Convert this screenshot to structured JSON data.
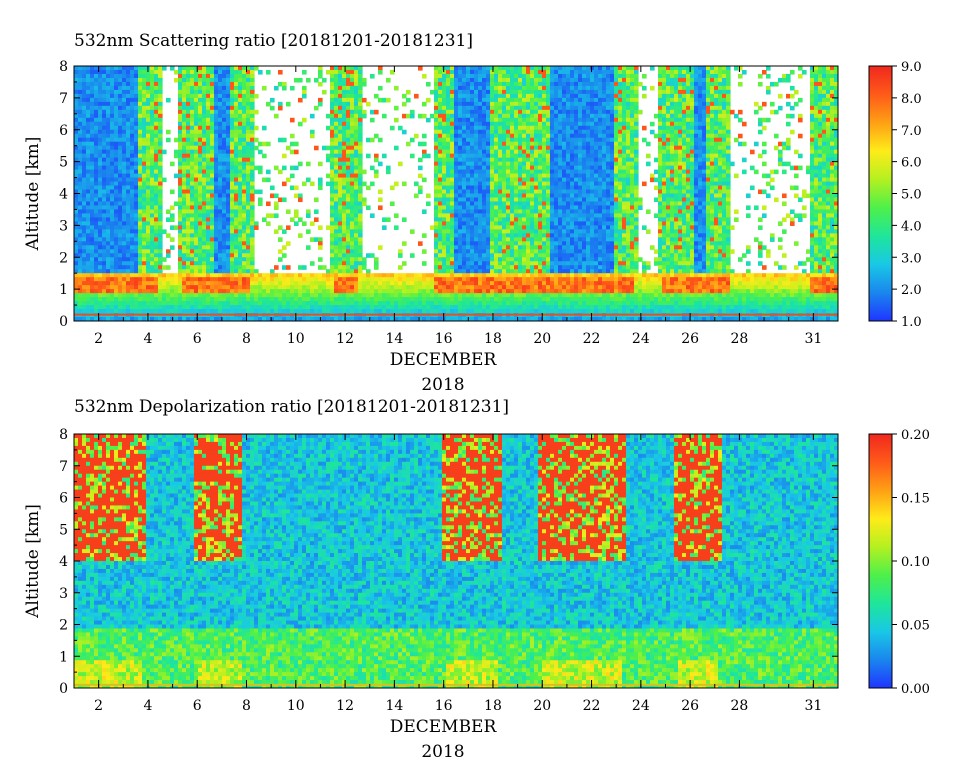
{
  "chart_data": [
    {
      "type": "heatmap",
      "title": "532nm Scattering ratio [20181201-20181231]",
      "xlabel": "DECEMBER",
      "xlabel2": "2018",
      "ylabel": "Altitude [km]",
      "xlim": [
        1,
        32
      ],
      "ylim": [
        0,
        8
      ],
      "x_ticks": [
        "2",
        "4",
        "6",
        "8",
        "10",
        "12",
        "14",
        "16",
        "18",
        "20",
        "22",
        "24",
        "26",
        "28",
        "31"
      ],
      "x_tick_values": [
        2,
        4,
        6,
        8,
        10,
        12,
        14,
        16,
        18,
        20,
        22,
        24,
        26,
        28,
        31
      ],
      "y_ticks": [
        "0",
        "1",
        "2",
        "3",
        "4",
        "5",
        "6",
        "7",
        "8"
      ],
      "y_tick_values": [
        0,
        1,
        2,
        3,
        4,
        5,
        6,
        7,
        8
      ],
      "colorbar": {
        "range": [
          1.0,
          9.0
        ],
        "ticks": [
          "1.0",
          "2.0",
          "3.0",
          "4.0",
          "5.0",
          "6.0",
          "7.0",
          "8.0",
          "9.0"
        ],
        "tick_values": [
          1,
          2,
          3,
          4,
          5,
          6,
          7,
          8,
          9
        ]
      },
      "missing_color": "#ffffff"
    },
    {
      "type": "heatmap",
      "title": "532nm Depolarization ratio [20181201-20181231]",
      "xlabel": "DECEMBER",
      "xlabel2": "2018",
      "ylabel": "Altitude [km]",
      "xlim": [
        1,
        32
      ],
      "ylim": [
        0,
        8
      ],
      "x_ticks": [
        "2",
        "4",
        "6",
        "8",
        "10",
        "12",
        "14",
        "16",
        "18",
        "20",
        "22",
        "24",
        "26",
        "28",
        "31"
      ],
      "x_tick_values": [
        2,
        4,
        6,
        8,
        10,
        12,
        14,
        16,
        18,
        20,
        22,
        24,
        26,
        28,
        31
      ],
      "y_ticks": [
        "0",
        "1",
        "2",
        "3",
        "4",
        "5",
        "6",
        "7",
        "8"
      ],
      "y_tick_values": [
        0,
        1,
        2,
        3,
        4,
        5,
        6,
        7,
        8
      ],
      "colorbar": {
        "range": [
          0.0,
          0.2
        ],
        "ticks": [
          "0.00",
          "0.05",
          "0.10",
          "0.15",
          "0.20"
        ],
        "tick_values": [
          0,
          0.05,
          0.1,
          0.15,
          0.2
        ]
      }
    }
  ],
  "colormap": [
    "#1f35ff",
    "#1a86ee",
    "#19c8e6",
    "#1ee69a",
    "#4ef04a",
    "#b4f020",
    "#ffeb19",
    "#ffa014",
    "#ff5a19",
    "#f0281e"
  ]
}
